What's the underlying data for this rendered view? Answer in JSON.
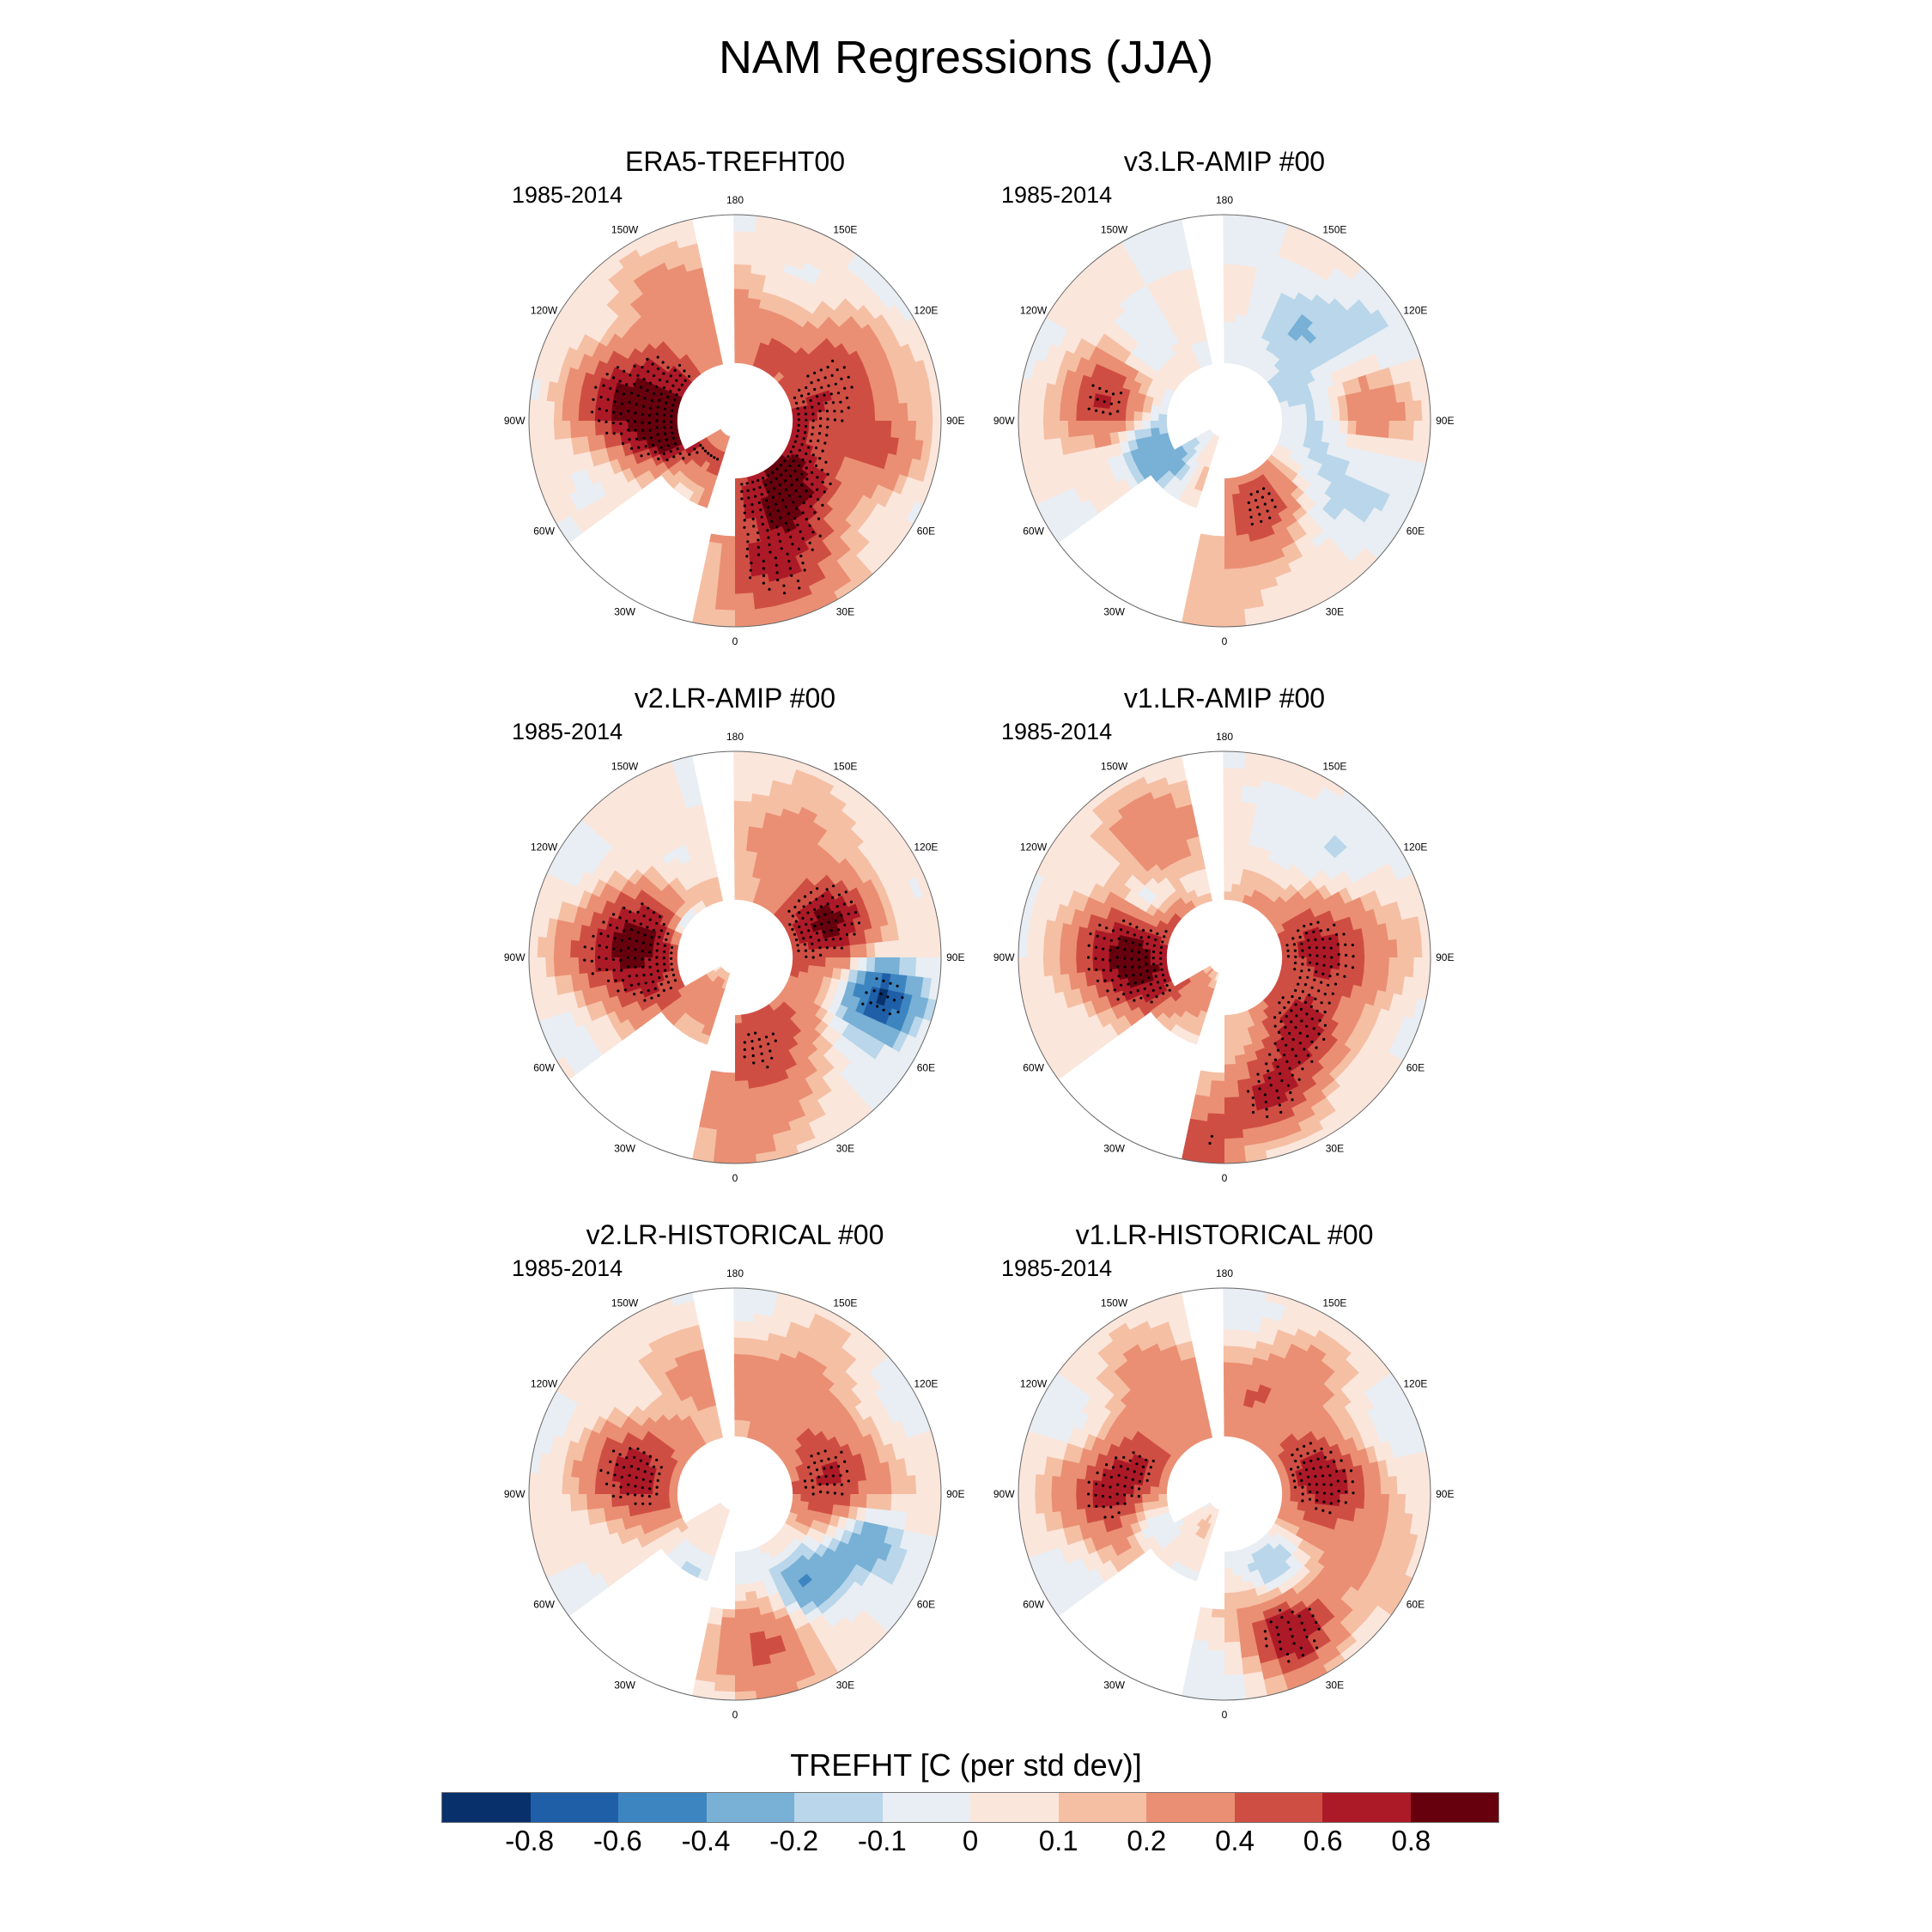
{
  "title": "NAM Regressions (JJA)",
  "chart_data": {
    "type": "heatmap",
    "projection": "north polar stereographic",
    "variable_label": "TREFHT [C (per std dev)]",
    "colorbar": {
      "tick_labels": [
        "-0.8",
        "-0.6",
        "-0.4",
        "-0.2",
        "-0.1",
        "0",
        "0.1",
        "0.2",
        "0.4",
        "0.6",
        "0.8"
      ],
      "colors": [
        "#08306b",
        "#1f5fa8",
        "#3d85c0",
        "#78b0d6",
        "#b9d6ea",
        "#e8eef3",
        "#fbe6dc",
        "#f5bfa4",
        "#ea8f73",
        "#cf4e43",
        "#ad1a27",
        "#67000d"
      ]
    },
    "longitude_labels": [
      "180",
      "150E",
      "120E",
      "90E",
      "60E",
      "30E",
      "0",
      "30W",
      "60W",
      "90W",
      "120W",
      "150W"
    ],
    "panels": [
      {
        "title": "ERA5-TREFHT00",
        "period": "1985-2014"
      },
      {
        "title": "v3.LR-AMIP  #00",
        "period": "1985-2014"
      },
      {
        "title": "v2.LR-AMIP  #00",
        "period": "1985-2014"
      },
      {
        "title": "v1.LR-AMIP  #00",
        "period": "1985-2014"
      },
      {
        "title": "v2.LR-HISTORICAL  #00",
        "period": "1985-2014"
      },
      {
        "title": "v1.LR-HISTORICAL  #00",
        "period": "1985-2014"
      }
    ]
  }
}
